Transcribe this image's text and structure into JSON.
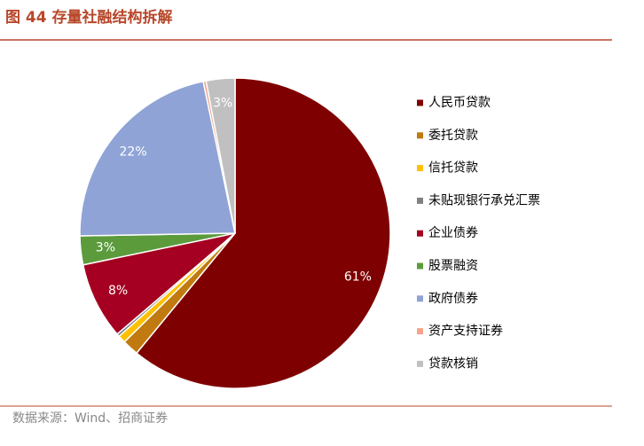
{
  "chart_data": {
    "type": "pie",
    "title": "图 44 存量社融结构拆解",
    "source": "数据来源：Wind、招商证券",
    "categories": [
      "人民币贷款",
      "委托贷款",
      "信托贷款",
      "未贴现银行承兑汇票",
      "企业债券",
      "股票融资",
      "政府债券",
      "资产支持证券",
      "贷款核销"
    ],
    "values": [
      61,
      1.7,
      0.8,
      0.3,
      8,
      3,
      22,
      0.3,
      3
    ],
    "value_labels": [
      "61%",
      null,
      null,
      null,
      "8%",
      "3%",
      "22%",
      null,
      "3%"
    ],
    "colors": [
      "#7f0000",
      "#c07a10",
      "#ffc000",
      "#808080",
      "#a50021",
      "#5b9b3c",
      "#8fa3d6",
      "#f4a58a",
      "#c0c0c0"
    ],
    "legend": "right"
  }
}
